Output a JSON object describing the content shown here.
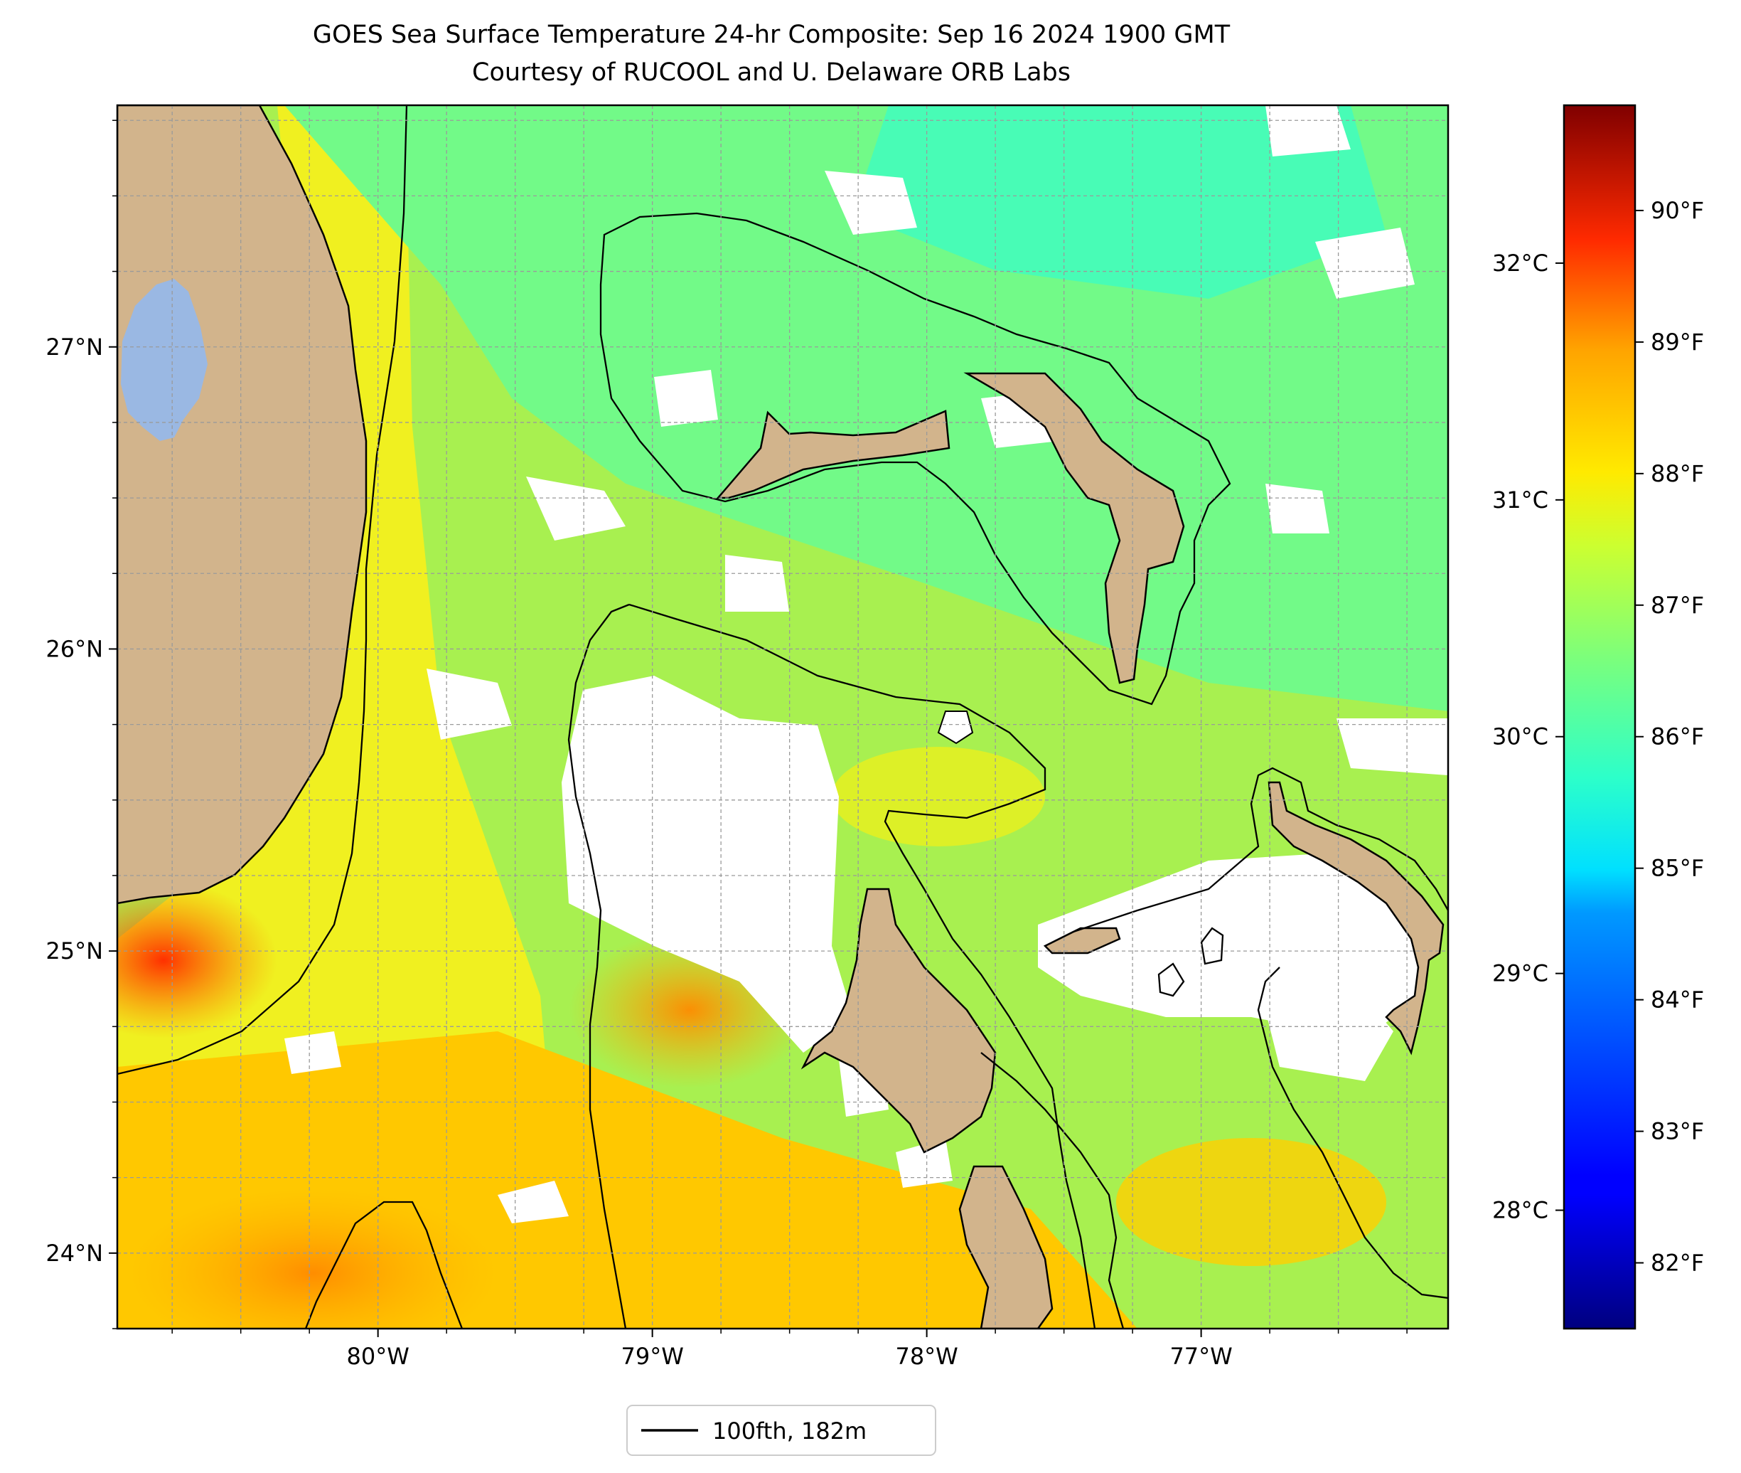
{
  "title": {
    "line1": "GOES Sea Surface Temperature 24-hr Composite: Sep 16 2024 1900 GMT",
    "line2": "Courtesy of RUCOOL and U. Delaware ORB Labs"
  },
  "map": {
    "lon_range": [
      -80.95,
      -76.1
    ],
    "lat_range": [
      23.75,
      27.8
    ],
    "lon_ticks": [
      {
        "value": -80,
        "label": "80°W"
      },
      {
        "value": -79,
        "label": "79°W"
      },
      {
        "value": -78,
        "label": "78°W"
      },
      {
        "value": -77,
        "label": "77°W"
      }
    ],
    "lat_ticks": [
      {
        "value": 24,
        "label": "24°N"
      },
      {
        "value": 25,
        "label": "25°N"
      },
      {
        "value": 26,
        "label": "26°N"
      },
      {
        "value": 27,
        "label": "27°N"
      }
    ],
    "grid": true,
    "land_color": "#d2b48c",
    "lake_color": "#9ab8e3",
    "no_data_color": "#ffffff"
  },
  "colorbar": {
    "colormap": "jet",
    "range_f": [
      81.5,
      90.8
    ],
    "celsius_ticks": [
      {
        "value": 28,
        "label": "28°C"
      },
      {
        "value": 29,
        "label": "29°C"
      },
      {
        "value": 30,
        "label": "30°C"
      },
      {
        "value": 31,
        "label": "31°C"
      },
      {
        "value": 32,
        "label": "32°C"
      }
    ],
    "fahrenheit_ticks": [
      {
        "value": 82,
        "label": "82°F"
      },
      {
        "value": 83,
        "label": "83°F"
      },
      {
        "value": 84,
        "label": "84°F"
      },
      {
        "value": 85,
        "label": "85°F"
      },
      {
        "value": 86,
        "label": "86°F"
      },
      {
        "value": 87,
        "label": "87°F"
      },
      {
        "value": 88,
        "label": "88°F"
      },
      {
        "value": 89,
        "label": "89°F"
      },
      {
        "value": 90,
        "label": "90°F"
      }
    ]
  },
  "legend": {
    "label": "100fth, 182m",
    "line_color": "#000000"
  }
}
